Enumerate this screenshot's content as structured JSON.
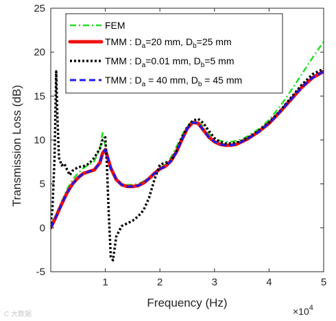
{
  "chart_data": {
    "type": "line",
    "title": "",
    "xlabel": "Frequency (Hz)",
    "ylabel": "Transmission Loss (dB)",
    "x_multiplier": {
      "base": "×10",
      "exponent": "4"
    },
    "xlim": [
      0,
      50000
    ],
    "ylim": [
      -5,
      25
    ],
    "xticks": [
      10000,
      20000,
      30000,
      40000,
      50000
    ],
    "xtick_labels": [
      "1",
      "2",
      "3",
      "4",
      "5"
    ],
    "yticks": [
      -5,
      0,
      5,
      10,
      15,
      20,
      25
    ],
    "ytick_labels": [
      "-5",
      "0",
      "5",
      "10",
      "15",
      "20",
      "25"
    ],
    "grid": false,
    "legend_position": "top-left",
    "series": [
      {
        "name": "FEM",
        "color": "#22dd22",
        "style": "dashdot",
        "x": [
          0,
          1000,
          2000,
          3000,
          4000,
          5000,
          6000,
          7000,
          8000,
          9000,
          9500,
          10000,
          11000,
          12000,
          13000,
          14000,
          15000,
          16000,
          17000,
          18000,
          19000,
          20000,
          21000,
          22000,
          23000,
          24000,
          25000,
          26000,
          27000,
          28000,
          29000,
          30000,
          31000,
          32000,
          33000,
          34000,
          35000,
          36000,
          37000,
          38000,
          39000,
          40000,
          42000,
          44000,
          46000,
          48000,
          50000
        ],
        "y": [
          0.3,
          1.6,
          3.0,
          4.4,
          5.5,
          6.2,
          6.8,
          7.2,
          7.6,
          9.0,
          10.8,
          9.4,
          6.8,
          5.6,
          5.0,
          4.9,
          4.9,
          5.0,
          5.3,
          5.7,
          6.3,
          6.8,
          7.2,
          8.0,
          9.2,
          10.5,
          11.6,
          12.2,
          12.1,
          11.5,
          10.7,
          10.2,
          9.9,
          9.8,
          9.8,
          9.9,
          10.1,
          10.4,
          10.8,
          11.2,
          11.7,
          12.3,
          13.8,
          15.6,
          17.5,
          19.4,
          21.2
        ]
      },
      {
        "name": "TMM : Da=20 mm, Db=25 mm",
        "color": "#ee1111",
        "style": "solid",
        "x": [
          0,
          1000,
          2000,
          3000,
          4000,
          5000,
          6000,
          7000,
          8000,
          9000,
          9500,
          10000,
          11000,
          12000,
          13000,
          14000,
          15000,
          16000,
          17000,
          18000,
          19000,
          20000,
          21000,
          22000,
          23000,
          24000,
          25000,
          26000,
          27000,
          28000,
          29000,
          30000,
          31000,
          32000,
          33000,
          34000,
          35000,
          36000,
          37000,
          38000,
          39000,
          40000,
          42000,
          44000,
          46000,
          48000,
          50000
        ],
        "y": [
          0.0,
          1.3,
          2.7,
          4.0,
          5.0,
          5.7,
          6.2,
          6.4,
          6.6,
          7.4,
          8.5,
          8.9,
          6.8,
          5.5,
          4.9,
          4.7,
          4.7,
          4.8,
          5.1,
          5.6,
          6.2,
          6.7,
          7.0,
          7.6,
          8.6,
          10.0,
          11.3,
          12.0,
          11.9,
          11.1,
          10.3,
          9.8,
          9.5,
          9.4,
          9.4,
          9.5,
          9.8,
          10.1,
          10.5,
          10.9,
          11.4,
          11.9,
          13.2,
          14.6,
          16.0,
          17.1,
          17.8
        ]
      },
      {
        "name": "TMM : Da=0.01 mm, Db=5 mm",
        "color": "#000000",
        "style": "dotted",
        "x": [
          0,
          300,
          700,
          1000,
          1200,
          1500,
          2000,
          2500,
          3000,
          3500,
          4000,
          5000,
          6000,
          7000,
          8000,
          9000,
          9500,
          10000,
          10300,
          10600,
          11000,
          11400,
          12000,
          13000,
          14000,
          15000,
          16000,
          17000,
          18000,
          19000,
          20000,
          21000,
          22000,
          23000,
          24000,
          25000,
          26000,
          27000,
          28000,
          29000,
          30000,
          31000,
          32000,
          33000,
          34000,
          35000,
          36000,
          37000,
          38000,
          39000,
          40000,
          42000,
          44000,
          46000,
          48000,
          50000
        ],
        "y": [
          0.5,
          2.0,
          8.0,
          17.8,
          13.0,
          8.0,
          7.1,
          7.3,
          6.6,
          6.0,
          6.5,
          6.9,
          7.0,
          7.3,
          8.0,
          9.0,
          10.0,
          10.3,
          7.0,
          2.0,
          -3.3,
          -3.7,
          -1.0,
          0.2,
          0.5,
          0.8,
          1.3,
          2.0,
          3.4,
          5.5,
          7.2,
          7.4,
          7.6,
          8.7,
          10.2,
          11.4,
          12.2,
          12.4,
          11.9,
          11.0,
          10.2,
          9.8,
          9.6,
          9.6,
          9.7,
          9.9,
          10.2,
          10.6,
          11.0,
          11.5,
          12.0,
          13.3,
          14.8,
          16.3,
          17.5,
          18.1
        ]
      },
      {
        "name": "TMM : Da = 40 mm, Db = 45 mm",
        "color": "#1a1aee",
        "style": "dashed",
        "x": [
          0,
          1000,
          2000,
          3000,
          4000,
          5000,
          6000,
          7000,
          8000,
          9000,
          9500,
          10000,
          11000,
          12000,
          13000,
          14000,
          15000,
          16000,
          17000,
          18000,
          19000,
          20000,
          21000,
          22000,
          23000,
          24000,
          25000,
          26000,
          27000,
          28000,
          29000,
          30000,
          31000,
          32000,
          33000,
          34000,
          35000,
          36000,
          37000,
          38000,
          39000,
          40000,
          42000,
          44000,
          46000,
          48000,
          50000
        ],
        "y": [
          0.0,
          1.3,
          2.7,
          4.0,
          5.0,
          5.7,
          6.2,
          6.4,
          6.6,
          7.4,
          8.5,
          8.9,
          6.8,
          5.5,
          4.9,
          4.7,
          4.7,
          4.8,
          5.1,
          5.6,
          6.2,
          6.7,
          7.0,
          7.6,
          8.6,
          10.0,
          11.3,
          12.0,
          11.9,
          11.1,
          10.3,
          9.8,
          9.5,
          9.4,
          9.4,
          9.5,
          9.8,
          10.1,
          10.5,
          10.9,
          11.4,
          11.9,
          13.2,
          14.6,
          16.0,
          17.1,
          17.8
        ]
      }
    ],
    "legend": [
      {
        "prefix": "FEM",
        "a": "",
        "mid": "",
        "b": "",
        "suffix": ""
      },
      {
        "prefix": "TMM : D",
        "a": "a",
        "mid": "=20 mm, D",
        "b": "b",
        "suffix": "=25 mm"
      },
      {
        "prefix": "TMM : D",
        "a": "a",
        "mid": "=0.01 mm, D",
        "b": "b",
        "suffix": "=5 mm"
      },
      {
        "prefix": "TMM : D",
        "a": "a",
        "mid": " = 40 mm, D",
        "b": "b",
        "suffix": " = 45 mm"
      }
    ]
  },
  "watermark": "C 大数据"
}
